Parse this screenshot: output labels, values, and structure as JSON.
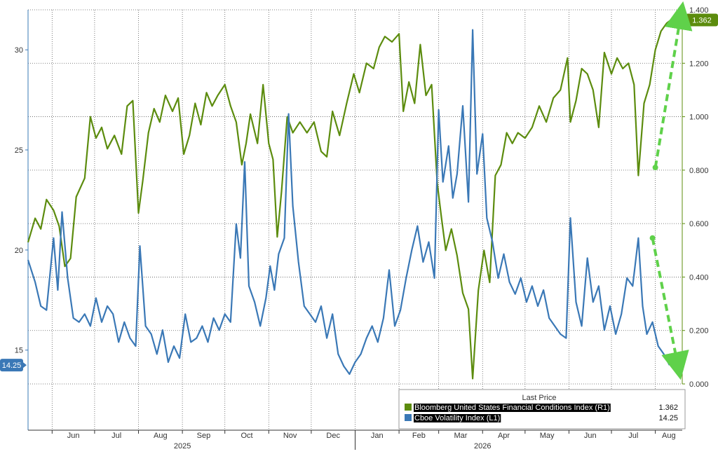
{
  "chart_data": {
    "type": "line",
    "title": "",
    "x_start": "2025-05-15",
    "x_end": "2026-08-20",
    "month_ticks": [
      {
        "label": "Jun",
        "date": "2025-06-01"
      },
      {
        "label": "Jul",
        "date": "2025-07-01"
      },
      {
        "label": "Aug",
        "date": "2025-08-01"
      },
      {
        "label": "Sep",
        "date": "2025-09-01"
      },
      {
        "label": "Oct",
        "date": "2025-10-01"
      },
      {
        "label": "Nov",
        "date": "2025-11-01"
      },
      {
        "label": "Dec",
        "date": "2025-12-01"
      },
      {
        "label": "Jan",
        "date": "2026-01-01"
      },
      {
        "label": "Feb",
        "date": "2026-02-01"
      },
      {
        "label": "Mar",
        "date": "2026-03-01"
      },
      {
        "label": "Apr",
        "date": "2026-04-01"
      },
      {
        "label": "May",
        "date": "2026-05-01"
      },
      {
        "label": "Jun",
        "date": "2026-06-01"
      },
      {
        "label": "Jul",
        "date": "2026-07-01"
      },
      {
        "label": "Aug",
        "date": "2026-08-01"
      }
    ],
    "year_labels": [
      {
        "label": "2025",
        "date": "2025-09-01"
      },
      {
        "label": "2026",
        "date": "2026-04-01"
      }
    ],
    "left_axis": {
      "ylim": [
        11,
        32
      ],
      "ticks": [
        "15",
        "20",
        "25",
        "30"
      ]
    },
    "right_axis": {
      "ylim": [
        0,
        1.4
      ],
      "ticks": [
        "0.000",
        "0.200",
        "0.400",
        "0.600",
        "0.800",
        "1.000",
        "1.200",
        "1.400"
      ]
    },
    "legend": {
      "title": "Last Price",
      "position": "bottom-right",
      "entries": [
        {
          "name": "Bloomberg United States Financial Conditions Index  (R1)",
          "value": "1.362",
          "color": "#5c8c0e"
        },
        {
          "name": "Cboe Volatility Index  (L1)",
          "value": "14.25",
          "color": "#3a78b6"
        }
      ]
    },
    "series": [
      {
        "name": "Bloomberg United States Financial Conditions Index  (R1)",
        "axis": "right",
        "color": "#5c8c0e",
        "last_label": "1.362",
        "points": [
          [
            "2025-05-15",
            0.53
          ],
          [
            "2025-05-20",
            0.62
          ],
          [
            "2025-05-24",
            0.58
          ],
          [
            "2025-05-28",
            0.69
          ],
          [
            "2025-06-02",
            0.65
          ],
          [
            "2025-06-06",
            0.59
          ],
          [
            "2025-06-10",
            0.44
          ],
          [
            "2025-06-14",
            0.47
          ],
          [
            "2025-06-18",
            0.7
          ],
          [
            "2025-06-24",
            0.77
          ],
          [
            "2025-06-28",
            1.0
          ],
          [
            "2025-07-02",
            0.92
          ],
          [
            "2025-07-06",
            0.96
          ],
          [
            "2025-07-10",
            0.88
          ],
          [
            "2025-07-15",
            0.93
          ],
          [
            "2025-07-20",
            0.86
          ],
          [
            "2025-07-24",
            1.04
          ],
          [
            "2025-07-28",
            1.06
          ],
          [
            "2025-08-01",
            0.64
          ],
          [
            "2025-08-04",
            0.76
          ],
          [
            "2025-08-08",
            0.94
          ],
          [
            "2025-08-12",
            1.03
          ],
          [
            "2025-08-16",
            0.98
          ],
          [
            "2025-08-20",
            1.08
          ],
          [
            "2025-08-25",
            1.02
          ],
          [
            "2025-08-29",
            1.07
          ],
          [
            "2025-09-02",
            0.86
          ],
          [
            "2025-09-06",
            0.93
          ],
          [
            "2025-09-10",
            1.05
          ],
          [
            "2025-09-14",
            0.97
          ],
          [
            "2025-09-18",
            1.09
          ],
          [
            "2025-09-22",
            1.04
          ],
          [
            "2025-09-26",
            1.08
          ],
          [
            "2025-10-01",
            1.12
          ],
          [
            "2025-10-05",
            1.04
          ],
          [
            "2025-10-09",
            0.98
          ],
          [
            "2025-10-13",
            0.82
          ],
          [
            "2025-10-16",
            0.9
          ],
          [
            "2025-10-19",
            1.01
          ],
          [
            "2025-10-24",
            0.9
          ],
          [
            "2025-10-28",
            1.12
          ],
          [
            "2025-11-01",
            0.9
          ],
          [
            "2025-11-04",
            0.84
          ],
          [
            "2025-11-07",
            0.55
          ],
          [
            "2025-11-10",
            0.72
          ],
          [
            "2025-11-14",
            1.0
          ],
          [
            "2025-11-18",
            0.94
          ],
          [
            "2025-11-23",
            0.98
          ],
          [
            "2025-11-28",
            0.94
          ],
          [
            "2025-12-03",
            0.98
          ],
          [
            "2025-12-08",
            0.87
          ],
          [
            "2025-12-12",
            0.85
          ],
          [
            "2025-12-16",
            1.02
          ],
          [
            "2025-12-21",
            0.93
          ],
          [
            "2025-12-26",
            1.05
          ],
          [
            "2025-12-31",
            1.16
          ],
          [
            "2026-01-04",
            1.09
          ],
          [
            "2026-01-09",
            1.2
          ],
          [
            "2026-01-14",
            1.18
          ],
          [
            "2026-01-18",
            1.26
          ],
          [
            "2026-01-22",
            1.3
          ],
          [
            "2026-01-27",
            1.28
          ],
          [
            "2026-02-01",
            1.31
          ],
          [
            "2026-02-04",
            1.02
          ],
          [
            "2026-02-08",
            1.13
          ],
          [
            "2026-02-12",
            1.05
          ],
          [
            "2026-02-16",
            1.27
          ],
          [
            "2026-02-20",
            1.08
          ],
          [
            "2026-02-24",
            1.12
          ],
          [
            "2026-02-28",
            0.75
          ],
          [
            "2026-03-03",
            0.62
          ],
          [
            "2026-03-06",
            0.5
          ],
          [
            "2026-03-10",
            0.58
          ],
          [
            "2026-03-14",
            0.48
          ],
          [
            "2026-03-18",
            0.34
          ],
          [
            "2026-03-22",
            0.28
          ],
          [
            "2026-03-25",
            0.02
          ],
          [
            "2026-03-29",
            0.35
          ],
          [
            "2026-04-02",
            0.5
          ],
          [
            "2026-04-06",
            0.38
          ],
          [
            "2026-04-10",
            0.78
          ],
          [
            "2026-04-14",
            0.82
          ],
          [
            "2026-04-18",
            0.94
          ],
          [
            "2026-04-22",
            0.9
          ],
          [
            "2026-04-26",
            0.94
          ],
          [
            "2026-05-01",
            0.92
          ],
          [
            "2026-05-06",
            0.96
          ],
          [
            "2026-05-11",
            1.04
          ],
          [
            "2026-05-16",
            0.98
          ],
          [
            "2026-05-21",
            1.07
          ],
          [
            "2026-05-26",
            1.1
          ],
          [
            "2026-05-31",
            1.22
          ],
          [
            "2026-06-02",
            0.98
          ],
          [
            "2026-06-06",
            1.06
          ],
          [
            "2026-06-10",
            1.18
          ],
          [
            "2026-06-14",
            1.16
          ],
          [
            "2026-06-18",
            1.1
          ],
          [
            "2026-06-22",
            0.96
          ],
          [
            "2026-06-26",
            1.24
          ],
          [
            "2026-07-01",
            1.16
          ],
          [
            "2026-07-05",
            1.22
          ],
          [
            "2026-07-09",
            1.18
          ],
          [
            "2026-07-13",
            1.2
          ],
          [
            "2026-07-17",
            1.12
          ],
          [
            "2026-07-20",
            0.78
          ],
          [
            "2026-07-24",
            1.05
          ],
          [
            "2026-07-28",
            1.12
          ],
          [
            "2026-08-01",
            1.25
          ],
          [
            "2026-08-05",
            1.32
          ],
          [
            "2026-08-09",
            1.35
          ],
          [
            "2026-08-12",
            1.362
          ]
        ]
      },
      {
        "name": "Cboe Volatility Index  (L1)",
        "axis": "left",
        "color": "#3a78b6",
        "last_label": "14.25",
        "points": [
          [
            "2025-05-15",
            19.5
          ],
          [
            "2025-05-20",
            18.4
          ],
          [
            "2025-05-24",
            17.2
          ],
          [
            "2025-05-28",
            17.0
          ],
          [
            "2025-06-02",
            20.6
          ],
          [
            "2025-06-05",
            18.0
          ],
          [
            "2025-06-08",
            21.9
          ],
          [
            "2025-06-12",
            18.6
          ],
          [
            "2025-06-16",
            16.6
          ],
          [
            "2025-06-20",
            16.4
          ],
          [
            "2025-06-24",
            16.8
          ],
          [
            "2025-06-28",
            16.2
          ],
          [
            "2025-07-02",
            17.6
          ],
          [
            "2025-07-06",
            16.4
          ],
          [
            "2025-07-10",
            17.2
          ],
          [
            "2025-07-14",
            16.8
          ],
          [
            "2025-07-18",
            15.4
          ],
          [
            "2025-07-22",
            16.4
          ],
          [
            "2025-07-26",
            15.6
          ],
          [
            "2025-07-30",
            15.2
          ],
          [
            "2025-08-02",
            20.2
          ],
          [
            "2025-08-06",
            16.2
          ],
          [
            "2025-08-10",
            15.8
          ],
          [
            "2025-08-14",
            14.8
          ],
          [
            "2025-08-18",
            16.0
          ],
          [
            "2025-08-22",
            14.4
          ],
          [
            "2025-08-26",
            15.2
          ],
          [
            "2025-08-30",
            14.6
          ],
          [
            "2025-09-03",
            16.8
          ],
          [
            "2025-09-07",
            15.4
          ],
          [
            "2025-09-11",
            15.6
          ],
          [
            "2025-09-15",
            16.2
          ],
          [
            "2025-09-19",
            15.4
          ],
          [
            "2025-09-23",
            16.6
          ],
          [
            "2025-09-27",
            16.0
          ],
          [
            "2025-10-01",
            16.8
          ],
          [
            "2025-10-05",
            16.4
          ],
          [
            "2025-10-09",
            21.3
          ],
          [
            "2025-10-12",
            19.6
          ],
          [
            "2025-10-15",
            24.4
          ],
          [
            "2025-10-18",
            18.2
          ],
          [
            "2025-10-22",
            17.4
          ],
          [
            "2025-10-26",
            16.2
          ],
          [
            "2025-10-30",
            17.6
          ],
          [
            "2025-11-02",
            19.2
          ],
          [
            "2025-11-05",
            18.0
          ],
          [
            "2025-11-08",
            19.8
          ],
          [
            "2025-11-12",
            20.6
          ],
          [
            "2025-11-15",
            26.8
          ],
          [
            "2025-11-18",
            22.2
          ],
          [
            "2025-11-22",
            19.4
          ],
          [
            "2025-11-26",
            17.2
          ],
          [
            "2025-11-30",
            16.8
          ],
          [
            "2025-12-04",
            16.4
          ],
          [
            "2025-12-08",
            17.2
          ],
          [
            "2025-12-12",
            15.6
          ],
          [
            "2025-12-16",
            16.8
          ],
          [
            "2025-12-20",
            14.8
          ],
          [
            "2025-12-24",
            14.2
          ],
          [
            "2025-12-28",
            13.8
          ],
          [
            "2026-01-01",
            14.4
          ],
          [
            "2026-01-05",
            14.8
          ],
          [
            "2026-01-09",
            15.6
          ],
          [
            "2026-01-13",
            16.2
          ],
          [
            "2026-01-17",
            15.4
          ],
          [
            "2026-01-21",
            16.6
          ],
          [
            "2026-01-25",
            19.0
          ],
          [
            "2026-01-29",
            16.2
          ],
          [
            "2026-02-02",
            17.0
          ],
          [
            "2026-02-06",
            18.6
          ],
          [
            "2026-02-10",
            20.0
          ],
          [
            "2026-02-14",
            21.2
          ],
          [
            "2026-02-18",
            19.4
          ],
          [
            "2026-02-22",
            20.4
          ],
          [
            "2026-02-26",
            18.6
          ],
          [
            "2026-03-01",
            27.0
          ],
          [
            "2026-03-04",
            23.4
          ],
          [
            "2026-03-08",
            25.2
          ],
          [
            "2026-03-11",
            22.6
          ],
          [
            "2026-03-14",
            23.8
          ],
          [
            "2026-03-18",
            27.2
          ],
          [
            "2026-03-22",
            22.4
          ],
          [
            "2026-03-25",
            31.0
          ],
          [
            "2026-03-28",
            23.8
          ],
          [
            "2026-04-01",
            25.8
          ],
          [
            "2026-04-04",
            21.6
          ],
          [
            "2026-04-08",
            20.4
          ],
          [
            "2026-04-12",
            18.6
          ],
          [
            "2026-04-16",
            19.8
          ],
          [
            "2026-04-20",
            18.4
          ],
          [
            "2026-04-24",
            17.8
          ],
          [
            "2026-04-28",
            18.6
          ],
          [
            "2026-05-02",
            17.4
          ],
          [
            "2026-05-06",
            18.2
          ],
          [
            "2026-05-10",
            17.2
          ],
          [
            "2026-05-14",
            18.0
          ],
          [
            "2026-05-18",
            16.6
          ],
          [
            "2026-05-22",
            16.2
          ],
          [
            "2026-05-26",
            15.8
          ],
          [
            "2026-05-30",
            15.6
          ],
          [
            "2026-06-02",
            21.6
          ],
          [
            "2026-06-06",
            17.4
          ],
          [
            "2026-06-10",
            16.2
          ],
          [
            "2026-06-14",
            19.6
          ],
          [
            "2026-06-18",
            17.4
          ],
          [
            "2026-06-22",
            18.2
          ],
          [
            "2026-06-26",
            16.0
          ],
          [
            "2026-06-30",
            17.2
          ],
          [
            "2026-07-04",
            15.8
          ],
          [
            "2026-07-08",
            16.8
          ],
          [
            "2026-07-12",
            18.6
          ],
          [
            "2026-07-16",
            18.2
          ],
          [
            "2026-07-20",
            20.6
          ],
          [
            "2026-07-23",
            17.2
          ],
          [
            "2026-07-26",
            15.8
          ],
          [
            "2026-07-30",
            16.4
          ],
          [
            "2026-08-03",
            15.2
          ],
          [
            "2026-08-07",
            14.8
          ],
          [
            "2026-08-11",
            14.25
          ]
        ]
      }
    ],
    "annotations": [
      {
        "series": "Bloomberg United States Financial Conditions Index  (R1)",
        "from": [
          "2026-08-01",
          0.81
        ],
        "to": [
          "2026-08-19",
          1.38
        ],
        "style": "dashed-arrow",
        "color": "#5fd14a"
      },
      {
        "series": "Cboe Volatility Index  (L1)",
        "from": [
          "2026-07-30",
          20.6
        ],
        "to": [
          "2026-08-17",
          14.2
        ],
        "style": "dashed-arrow",
        "color": "#5fd14a"
      }
    ]
  }
}
